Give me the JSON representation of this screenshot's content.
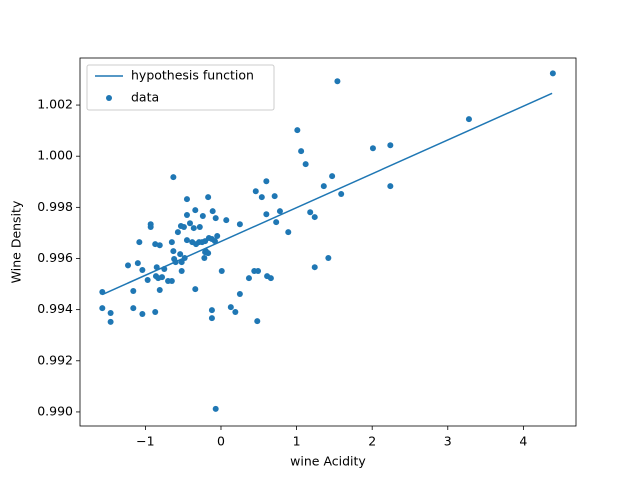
{
  "chart_data": {
    "type": "scatter",
    "xlabel": "wine Acidity",
    "ylabel": "Wine Density",
    "xlim": [
      -1.865,
      4.696
    ],
    "ylim": [
      0.98945,
      1.00384
    ],
    "xticks": [
      {
        "value": -1,
        "label": "−1"
      },
      0,
      1,
      2,
      3,
      4
    ],
    "yticks": [
      {
        "value": 0.99,
        "label": "0.990"
      },
      {
        "value": 0.992,
        "label": "0.992"
      },
      {
        "value": 0.994,
        "label": "0.994"
      },
      {
        "value": 0.996,
        "label": "0.996"
      },
      {
        "value": 0.998,
        "label": "0.998"
      },
      {
        "value": 1.0,
        "label": "1.000"
      },
      {
        "value": 1.002,
        "label": "1.002"
      }
    ],
    "legend": "upper left",
    "series": [
      {
        "name": "hypothesis function",
        "kind": "line",
        "color": "#1f77b4",
        "x": [
          -1.57,
          4.38
        ],
        "values": [
          0.99459,
          1.00246
        ]
      },
      {
        "name": "data",
        "kind": "scatter",
        "color": "#1f77b4",
        "x": [
          -1.57,
          -1.57,
          -1.46,
          -1.46,
          -1.23,
          -1.16,
          -1.16,
          -1.1,
          -1.08,
          -1.04,
          -1.04,
          -0.97,
          -0.93,
          -0.93,
          -0.87,
          -0.87,
          -0.86,
          -0.85,
          -0.83,
          -0.81,
          -0.81,
          -0.78,
          -0.75,
          -0.7,
          -0.65,
          -0.63,
          -0.65,
          -0.63,
          -0.62,
          -0.6,
          -0.57,
          -0.54,
          -0.53,
          -0.52,
          -0.52,
          -0.49,
          -0.48,
          -0.45,
          -0.45,
          -0.45,
          -0.41,
          -0.38,
          -0.36,
          -0.34,
          -0.34,
          -0.33,
          -0.29,
          -0.28,
          -0.25,
          -0.24,
          -0.22,
          -0.21,
          -0.21,
          -0.2,
          -0.17,
          -0.17,
          -0.16,
          -0.12,
          -0.12,
          -0.12,
          -0.11,
          -0.08,
          -0.07,
          -0.05,
          -0.07,
          0.01,
          0.07,
          0.13,
          0.19,
          0.25,
          0.25,
          0.37,
          0.44,
          0.46,
          0.49,
          0.48,
          0.54,
          0.6,
          0.6,
          0.61,
          0.66,
          0.71,
          0.73,
          0.78,
          0.89,
          1.01,
          1.06,
          1.12,
          1.18,
          1.24,
          1.24,
          1.36,
          1.42,
          1.47,
          1.54,
          1.59,
          2.01,
          2.24,
          2.24,
          3.28,
          4.39
        ],
        "values": [
          0.99469,
          0.99406,
          0.99387,
          0.99352,
          0.99573,
          0.99473,
          0.99406,
          0.99582,
          0.99664,
          0.99383,
          0.99555,
          0.99516,
          0.99734,
          0.99723,
          0.99391,
          0.99656,
          0.99531,
          0.99566,
          0.99523,
          0.99652,
          0.99477,
          0.99527,
          0.99559,
          0.99512,
          0.99512,
          0.99918,
          0.99664,
          0.99629,
          0.99598,
          0.99586,
          0.99703,
          0.99617,
          0.99727,
          0.99586,
          0.99551,
          0.99723,
          0.99602,
          0.99832,
          0.9977,
          0.99672,
          0.99738,
          0.99664,
          0.99719,
          0.9948,
          0.99789,
          0.99656,
          0.99664,
          0.99723,
          0.99664,
          0.99766,
          0.99602,
          0.99625,
          0.99668,
          0.99629,
          0.9984,
          0.99621,
          0.9968,
          0.99676,
          0.99398,
          0.99367,
          0.99785,
          0.99668,
          0.99758,
          0.99688,
          0.99012,
          0.99551,
          0.9975,
          0.9941,
          0.99391,
          0.99461,
          0.99734,
          0.99523,
          0.99551,
          0.99863,
          0.99551,
          0.99355,
          0.9984,
          0.99902,
          0.99773,
          0.99531,
          0.99523,
          0.99844,
          0.99742,
          0.99785,
          0.99703,
          1.00102,
          1.0002,
          0.99969,
          0.99781,
          0.99762,
          0.99566,
          0.99883,
          0.99602,
          0.99922,
          1.00293,
          0.99852,
          1.00031,
          1.00043,
          0.99883,
          1.00145,
          1.00324
        ]
      }
    ]
  }
}
